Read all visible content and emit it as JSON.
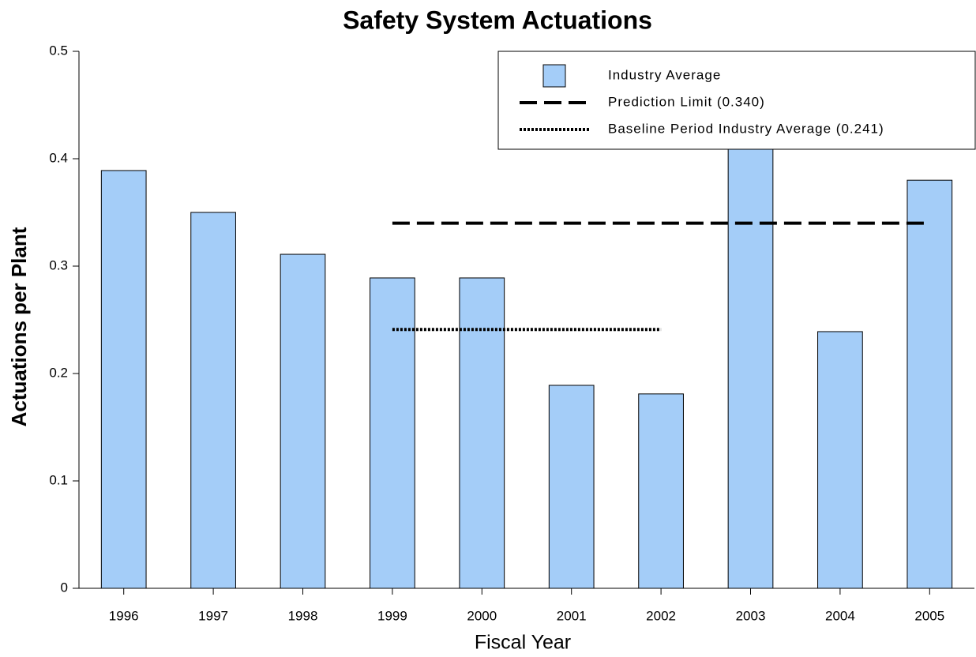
{
  "chart_data": {
    "type": "bar",
    "title": "Safety System Actuations",
    "xlabel": "Fiscal Year",
    "ylabel": "Actuations per Plant",
    "categories": [
      "1996",
      "1997",
      "1998",
      "1999",
      "2000",
      "2001",
      "2002",
      "2003",
      "2004",
      "2005"
    ],
    "series": [
      {
        "name": "Industry Average",
        "type": "bar",
        "color": "#a4cdf8",
        "values": [
          0.389,
          0.35,
          0.311,
          0.289,
          0.289,
          0.189,
          0.181,
          0.41,
          0.239,
          0.38
        ]
      },
      {
        "name": "Prediction Limit (0.340)",
        "type": "line",
        "style": "dashed",
        "color": "#000000",
        "values": [
          null,
          null,
          null,
          0.34,
          0.34,
          0.34,
          0.34,
          0.34,
          0.34,
          0.34
        ]
      },
      {
        "name": "Baseline Period Industry Average (0.241)",
        "type": "line",
        "style": "dotted",
        "color": "#000000",
        "values": [
          null,
          null,
          null,
          0.241,
          0.241,
          0.241,
          0.241,
          null,
          null,
          null
        ]
      }
    ],
    "ylim": [
      0,
      0.5
    ],
    "yticks": [
      0,
      0.1,
      0.2,
      0.3,
      0.4,
      0.5
    ],
    "legend": "top-right"
  }
}
